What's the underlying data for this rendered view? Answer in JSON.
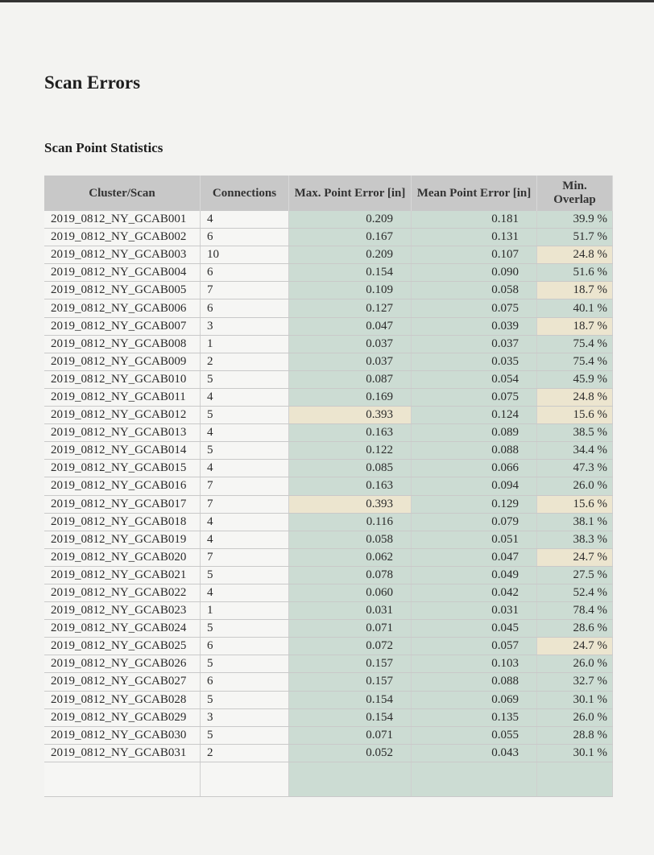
{
  "title": "Scan Errors",
  "subtitle": "Scan Point Statistics",
  "colors": {
    "header": "#c8c8c8",
    "ok": "#ccdcd3",
    "warn": "#ece5cf"
  },
  "columns": [
    "Cluster/Scan",
    "Connections",
    "Max. Point Error [in]",
    "Mean Point Error [in]",
    "Min. Overlap"
  ],
  "rows": [
    {
      "scan": "2019_0812_NY_GCAB001",
      "connections": "4",
      "max": "0.209",
      "mean": "0.181",
      "overlap": "39.9 %",
      "max_warn": false,
      "overlap_warn": false
    },
    {
      "scan": "2019_0812_NY_GCAB002",
      "connections": "6",
      "max": "0.167",
      "mean": "0.131",
      "overlap": "51.7 %",
      "max_warn": false,
      "overlap_warn": false
    },
    {
      "scan": "2019_0812_NY_GCAB003",
      "connections": "10",
      "max": "0.209",
      "mean": "0.107",
      "overlap": "24.8 %",
      "max_warn": false,
      "overlap_warn": true
    },
    {
      "scan": "2019_0812_NY_GCAB004",
      "connections": "6",
      "max": "0.154",
      "mean": "0.090",
      "overlap": "51.6 %",
      "max_warn": false,
      "overlap_warn": false
    },
    {
      "scan": "2019_0812_NY_GCAB005",
      "connections": "7",
      "max": "0.109",
      "mean": "0.058",
      "overlap": "18.7 %",
      "max_warn": false,
      "overlap_warn": true
    },
    {
      "scan": "2019_0812_NY_GCAB006",
      "connections": "6",
      "max": "0.127",
      "mean": "0.075",
      "overlap": "40.1 %",
      "max_warn": false,
      "overlap_warn": false
    },
    {
      "scan": "2019_0812_NY_GCAB007",
      "connections": "3",
      "max": "0.047",
      "mean": "0.039",
      "overlap": "18.7 %",
      "max_warn": false,
      "overlap_warn": true
    },
    {
      "scan": "2019_0812_NY_GCAB008",
      "connections": "1",
      "max": "0.037",
      "mean": "0.037",
      "overlap": "75.4 %",
      "max_warn": false,
      "overlap_warn": false
    },
    {
      "scan": "2019_0812_NY_GCAB009",
      "connections": "2",
      "max": "0.037",
      "mean": "0.035",
      "overlap": "75.4 %",
      "max_warn": false,
      "overlap_warn": false
    },
    {
      "scan": "2019_0812_NY_GCAB010",
      "connections": "5",
      "max": "0.087",
      "mean": "0.054",
      "overlap": "45.9 %",
      "max_warn": false,
      "overlap_warn": false
    },
    {
      "scan": "2019_0812_NY_GCAB011",
      "connections": "4",
      "max": "0.169",
      "mean": "0.075",
      "overlap": "24.8 %",
      "max_warn": false,
      "overlap_warn": true
    },
    {
      "scan": "2019_0812_NY_GCAB012",
      "connections": "5",
      "max": "0.393",
      "mean": "0.124",
      "overlap": "15.6 %",
      "max_warn": true,
      "overlap_warn": true
    },
    {
      "scan": "2019_0812_NY_GCAB013",
      "connections": "4",
      "max": "0.163",
      "mean": "0.089",
      "overlap": "38.5 %",
      "max_warn": false,
      "overlap_warn": false
    },
    {
      "scan": "2019_0812_NY_GCAB014",
      "connections": "5",
      "max": "0.122",
      "mean": "0.088",
      "overlap": "34.4 %",
      "max_warn": false,
      "overlap_warn": false
    },
    {
      "scan": "2019_0812_NY_GCAB015",
      "connections": "4",
      "max": "0.085",
      "mean": "0.066",
      "overlap": "47.3 %",
      "max_warn": false,
      "overlap_warn": false
    },
    {
      "scan": "2019_0812_NY_GCAB016",
      "connections": "7",
      "max": "0.163",
      "mean": "0.094",
      "overlap": "26.0 %",
      "max_warn": false,
      "overlap_warn": false
    },
    {
      "scan": "2019_0812_NY_GCAB017",
      "connections": "7",
      "max": "0.393",
      "mean": "0.129",
      "overlap": "15.6 %",
      "max_warn": true,
      "overlap_warn": true
    },
    {
      "scan": "2019_0812_NY_GCAB018",
      "connections": "4",
      "max": "0.116",
      "mean": "0.079",
      "overlap": "38.1 %",
      "max_warn": false,
      "overlap_warn": false
    },
    {
      "scan": "2019_0812_NY_GCAB019",
      "connections": "4",
      "max": "0.058",
      "mean": "0.051",
      "overlap": "38.3 %",
      "max_warn": false,
      "overlap_warn": false
    },
    {
      "scan": "2019_0812_NY_GCAB020",
      "connections": "7",
      "max": "0.062",
      "mean": "0.047",
      "overlap": "24.7 %",
      "max_warn": false,
      "overlap_warn": true
    },
    {
      "scan": "2019_0812_NY_GCAB021",
      "connections": "5",
      "max": "0.078",
      "mean": "0.049",
      "overlap": "27.5 %",
      "max_warn": false,
      "overlap_warn": false
    },
    {
      "scan": "2019_0812_NY_GCAB022",
      "connections": "4",
      "max": "0.060",
      "mean": "0.042",
      "overlap": "52.4 %",
      "max_warn": false,
      "overlap_warn": false
    },
    {
      "scan": "2019_0812_NY_GCAB023",
      "connections": "1",
      "max": "0.031",
      "mean": "0.031",
      "overlap": "78.4 %",
      "max_warn": false,
      "overlap_warn": false
    },
    {
      "scan": "2019_0812_NY_GCAB024",
      "connections": "5",
      "max": "0.071",
      "mean": "0.045",
      "overlap": "28.6 %",
      "max_warn": false,
      "overlap_warn": false
    },
    {
      "scan": "2019_0812_NY_GCAB025",
      "connections": "6",
      "max": "0.072",
      "mean": "0.057",
      "overlap": "24.7 %",
      "max_warn": false,
      "overlap_warn": true
    },
    {
      "scan": "2019_0812_NY_GCAB026",
      "connections": "5",
      "max": "0.157",
      "mean": "0.103",
      "overlap": "26.0 %",
      "max_warn": false,
      "overlap_warn": false
    },
    {
      "scan": "2019_0812_NY_GCAB027",
      "connections": "6",
      "max": "0.157",
      "mean": "0.088",
      "overlap": "32.7 %",
      "max_warn": false,
      "overlap_warn": false
    },
    {
      "scan": "2019_0812_NY_GCAB028",
      "connections": "5",
      "max": "0.154",
      "mean": "0.069",
      "overlap": "30.1 %",
      "max_warn": false,
      "overlap_warn": false
    },
    {
      "scan": "2019_0812_NY_GCAB029",
      "connections": "3",
      "max": "0.154",
      "mean": "0.135",
      "overlap": "26.0 %",
      "max_warn": false,
      "overlap_warn": false
    },
    {
      "scan": "2019_0812_NY_GCAB030",
      "connections": "5",
      "max": "0.071",
      "mean": "0.055",
      "overlap": "28.8 %",
      "max_warn": false,
      "overlap_warn": false
    },
    {
      "scan": "2019_0812_NY_GCAB031",
      "connections": "2",
      "max": "0.052",
      "mean": "0.043",
      "overlap": "30.1 %",
      "max_warn": false,
      "overlap_warn": false
    }
  ]
}
